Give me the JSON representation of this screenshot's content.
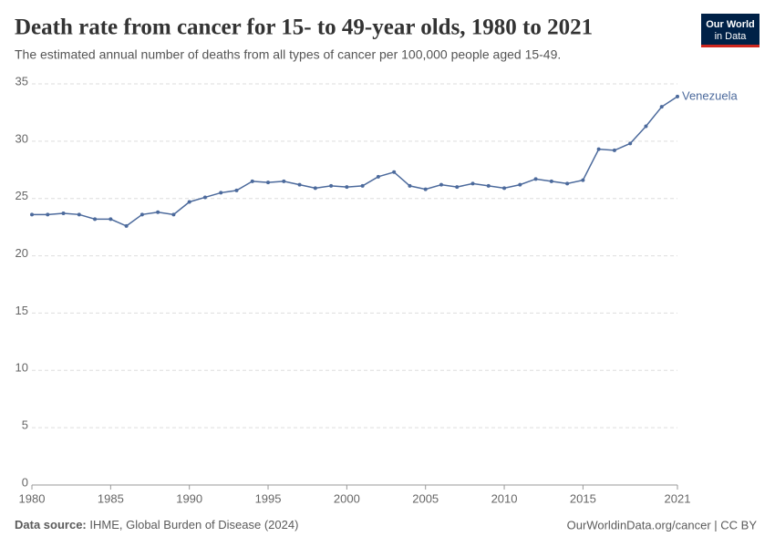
{
  "chart_data": {
    "type": "line",
    "title": "Death rate from cancer for 15- to 49-year olds, 1980 to 2021",
    "subtitle": "The estimated annual number of deaths from all types of cancer per 100,000 people aged 15-49.",
    "logo": [
      "Our World",
      "in Data"
    ],
    "source_label": "Data source:",
    "source": "IHME, Global Burden of Disease (2024)",
    "footer_right": "OurWorldinData.org/cancer | CC BY",
    "x": [
      1980,
      1981,
      1982,
      1983,
      1984,
      1985,
      1986,
      1987,
      1988,
      1989,
      1990,
      1991,
      1992,
      1993,
      1994,
      1995,
      1996,
      1997,
      1998,
      1999,
      2000,
      2001,
      2002,
      2003,
      2004,
      2005,
      2006,
      2007,
      2008,
      2009,
      2010,
      2011,
      2012,
      2013,
      2014,
      2015,
      2016,
      2017,
      2018,
      2019,
      2020,
      2021
    ],
    "series": [
      {
        "name": "Venezuela",
        "color": "#4c6a9c",
        "values": [
          23.6,
          23.6,
          23.7,
          23.6,
          23.2,
          23.2,
          22.6,
          23.6,
          23.8,
          23.6,
          24.7,
          25.1,
          25.5,
          25.7,
          26.5,
          26.4,
          26.5,
          26.2,
          25.9,
          26.1,
          26.0,
          26.1,
          26.9,
          27.3,
          26.1,
          25.8,
          26.2,
          26.0,
          26.3,
          26.1,
          25.9,
          26.2,
          26.7,
          26.5,
          26.3,
          26.6,
          29.3,
          29.2,
          29.8,
          31.3,
          33.0,
          33.9
        ]
      }
    ],
    "xlim": [
      1980,
      2021
    ],
    "xticks": [
      1980,
      1985,
      1990,
      1995,
      2000,
      2005,
      2010,
      2015,
      2021
    ],
    "ylim": [
      0,
      35
    ],
    "yticks": [
      0,
      5,
      10,
      15,
      20,
      25,
      30,
      35
    ],
    "grid": true
  }
}
